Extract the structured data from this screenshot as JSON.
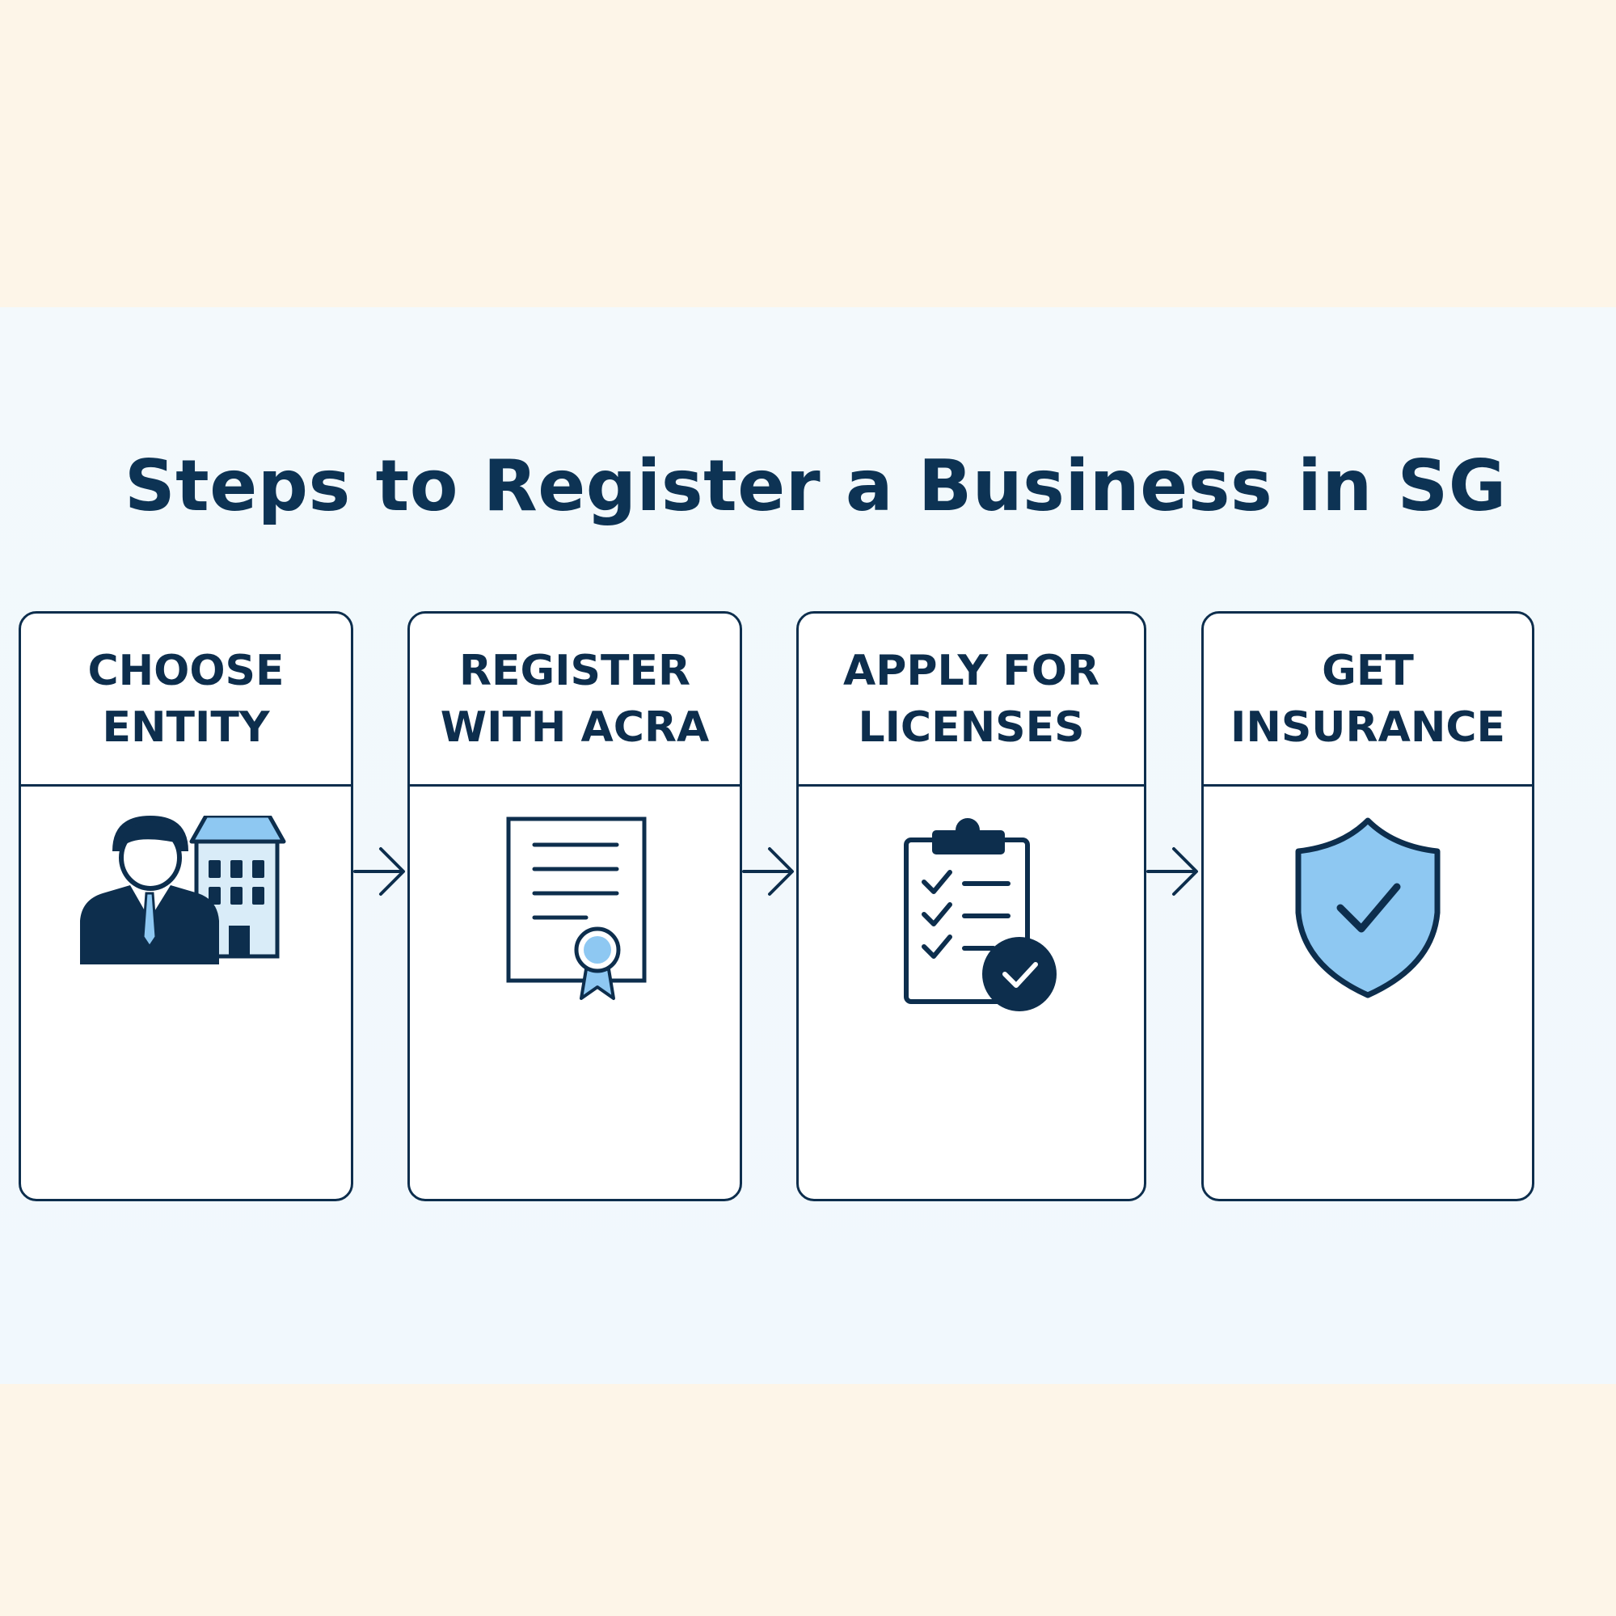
{
  "title": "Steps to Register a Business in SG",
  "steps": [
    {
      "label": "CHOOSE\nENTITY",
      "icon": "person-building-icon"
    },
    {
      "label": "REGISTER\nWITH ACRA",
      "icon": "certificate-icon"
    },
    {
      "label": "APPLY FOR\nLICENSES",
      "icon": "clipboard-checklist-icon"
    },
    {
      "label": "GET\nINSURANCE",
      "icon": "shield-check-icon"
    }
  ],
  "colors": {
    "navy": "#0d2e4d",
    "accent_blue": "#8ec8f2",
    "light_blue": "#d9ecf8",
    "page_background": "#fdf5e8",
    "panel_background": "#f3f9fc"
  }
}
